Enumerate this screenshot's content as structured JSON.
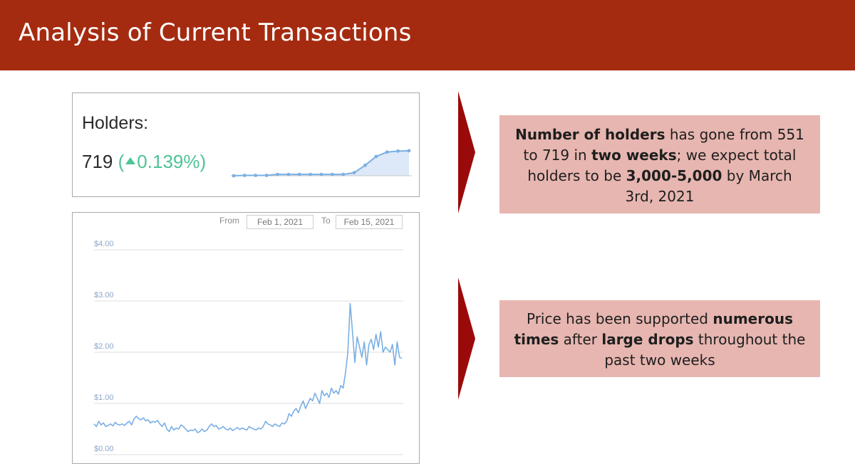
{
  "slide": {
    "title": "Analysis of Current Transactions"
  },
  "holders_widget": {
    "label": "Holders:",
    "count": "719",
    "change": "0.139%",
    "sparkline": [
      0,
      0.5,
      0.5,
      0.5,
      2,
      2,
      2,
      2,
      2,
      2,
      2,
      4.5,
      15.5,
      28.5,
      35,
      36.5,
      37
    ]
  },
  "price_widget": {
    "from_label": "From",
    "from_value": "Feb 1, 2021",
    "to_label": "To",
    "to_value": "Feb 15, 2021"
  },
  "chart_data": {
    "type": "line",
    "title": "",
    "xlabel": "",
    "ylabel": "",
    "x_range": [
      "Feb 1, 2021",
      "Feb 15, 2021"
    ],
    "ylim": [
      0,
      4
    ],
    "y_ticks": [
      "$4.00",
      "$3.00",
      "$2.00",
      "$1.00",
      "$0.00"
    ],
    "y_tick_values": [
      4,
      3,
      2,
      1,
      0
    ],
    "grid": true,
    "color": "#7aafe3",
    "series": [
      {
        "values": [
          0.6,
          0.55,
          0.65,
          0.58,
          0.62,
          0.55,
          0.57,
          0.6,
          0.56,
          0.63,
          0.59,
          0.58,
          0.6,
          0.57,
          0.62,
          0.65,
          0.58,
          0.7,
          0.75,
          0.7,
          0.68,
          0.72,
          0.66,
          0.68,
          0.62,
          0.65,
          0.63,
          0.67,
          0.6,
          0.55,
          0.62,
          0.5,
          0.45,
          0.55,
          0.48,
          0.52,
          0.5,
          0.58,
          0.55,
          0.5,
          0.45,
          0.48,
          0.47,
          0.5,
          0.43,
          0.45,
          0.5,
          0.45,
          0.48,
          0.55,
          0.6,
          0.55,
          0.57,
          0.5,
          0.52,
          0.55,
          0.5,
          0.48,
          0.52,
          0.47,
          0.5,
          0.53,
          0.49,
          0.52,
          0.5,
          0.48,
          0.55,
          0.52,
          0.5,
          0.48,
          0.52,
          0.5,
          0.55,
          0.65,
          0.6,
          0.58,
          0.55,
          0.6,
          0.57,
          0.55,
          0.62,
          0.6,
          0.65,
          0.8,
          0.75,
          0.85,
          0.9,
          0.82,
          0.95,
          1.05,
          0.9,
          1.0,
          1.1,
          1.05,
          1.2,
          1.1,
          1.0,
          1.25,
          1.15,
          1.2,
          1.12,
          1.3,
          1.2,
          1.25,
          1.18,
          1.35,
          1.3,
          1.6,
          2.0,
          2.95,
          2.4,
          1.8,
          2.3,
          2.1,
          1.9,
          2.2,
          1.75,
          2.15,
          2.25,
          2.05,
          2.35,
          2.1,
          2.4,
          2.0,
          2.1,
          2.05,
          2.0,
          2.15,
          1.75,
          2.2,
          1.9,
          1.88
        ]
      }
    ]
  },
  "callouts": {
    "holders": {
      "b1": "Number of holders",
      "t1": " has gone from 551 to 719 in ",
      "b2": "two weeks",
      "t2": "; we expect total holders to be ",
      "b3": "3,000-5,000",
      "t3": " by March 3rd, 2021"
    },
    "price": {
      "t1": "Price has been supported ",
      "b1": "numerous times",
      "t2": " after ",
      "b2": "large drops",
      "t3": " throughout the past two weeks"
    }
  },
  "colors": {
    "title_bar": "#a52b10",
    "callout_bg": "#e7b6b0",
    "arrow": "#9b0a0a",
    "positive_change": "#4fc395",
    "line": "#7aafe3"
  }
}
